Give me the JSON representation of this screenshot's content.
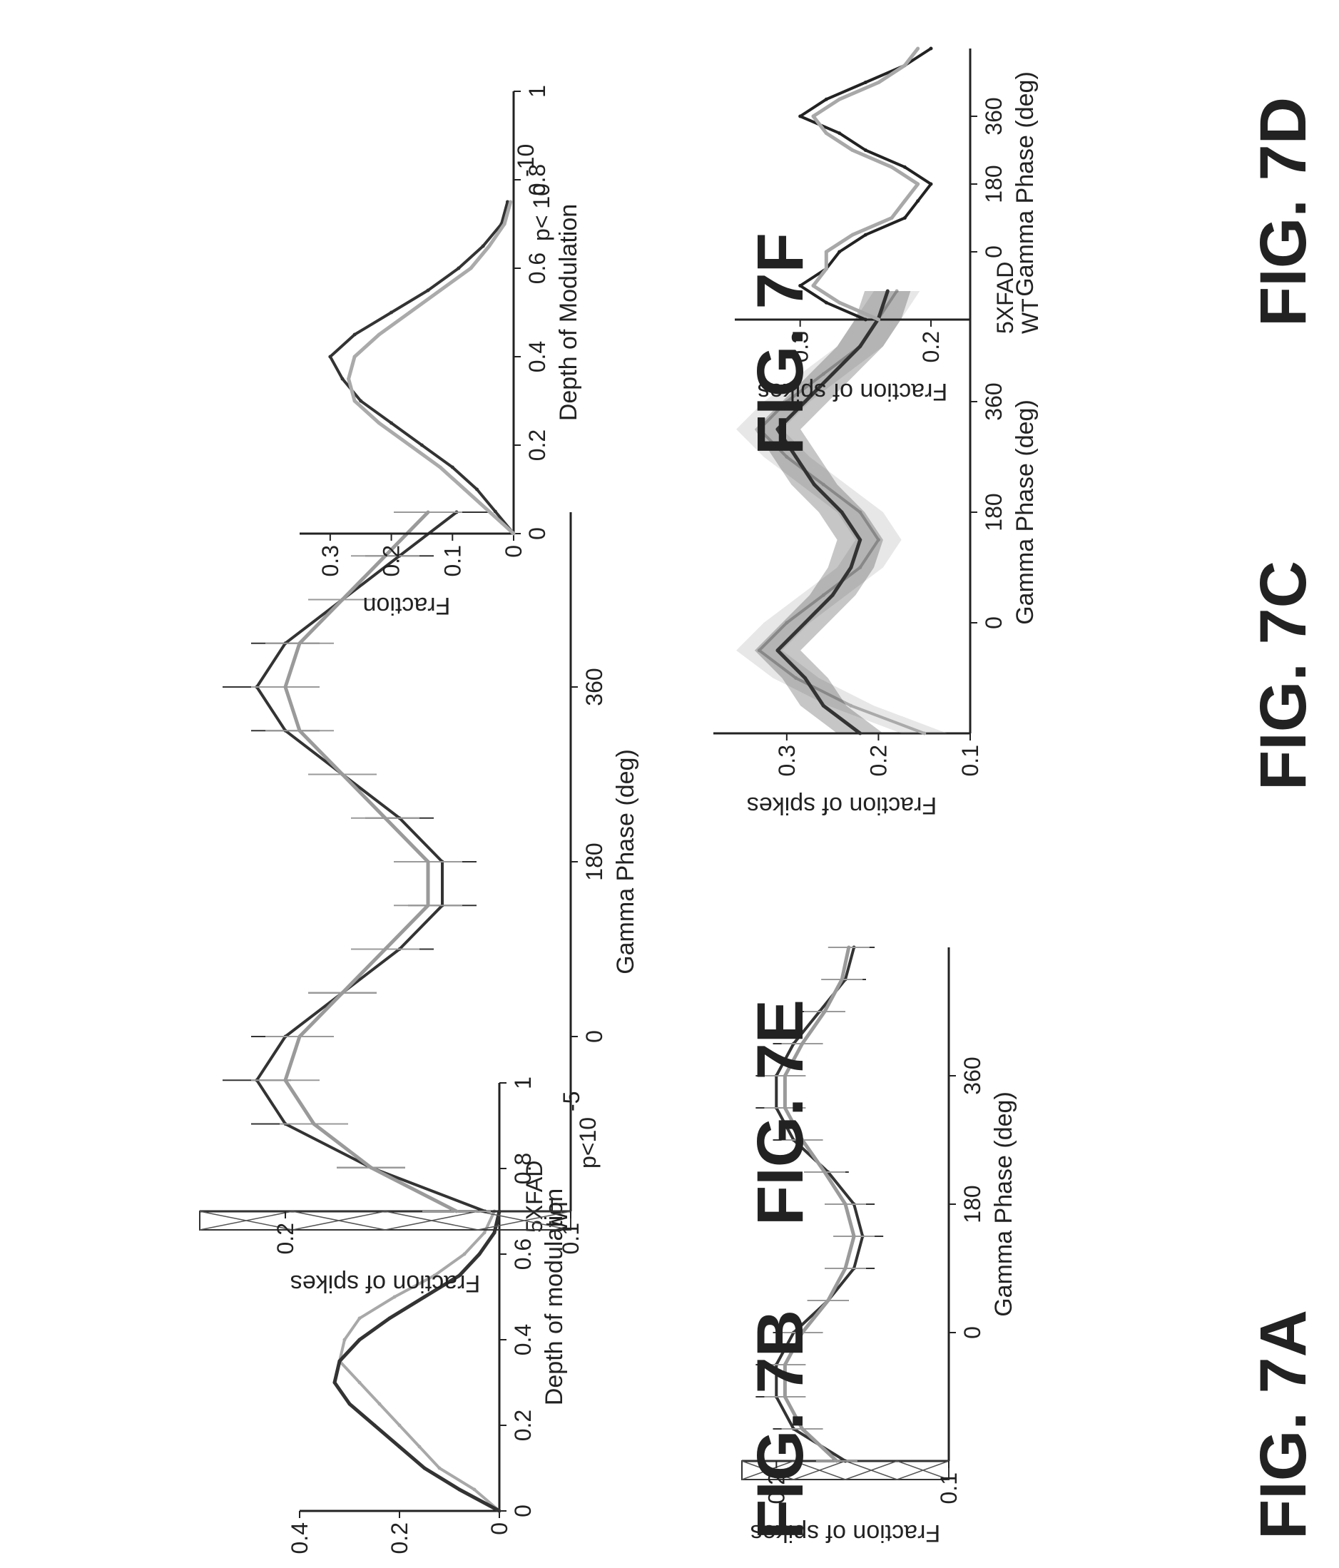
{
  "figures": {
    "a": {
      "title": "FIG. 7A"
    },
    "b": {
      "title": "FIG. 7B"
    },
    "c": {
      "title": "FIG. 7C"
    },
    "d": {
      "title": "FIG. 7D"
    },
    "e": {
      "title": "FIG. 7E"
    },
    "f": {
      "title": "FIG. 7F"
    }
  },
  "chart_data": [
    {
      "id": "a",
      "type": "line",
      "title": "FIG. 7A",
      "xlabel": "Gamma Phase (deg)",
      "ylabel": "Fraction of spikes",
      "x_ticks": [
        "0",
        "180",
        "360"
      ],
      "y_ticks": [
        "0.1",
        "0.2"
      ],
      "xlim": [
        -180,
        540
      ],
      "ylim": [
        0.1,
        0.22
      ],
      "x": [
        -180,
        -135,
        -90,
        -45,
        0,
        45,
        90,
        135,
        180,
        225,
        270,
        315,
        360,
        405,
        450,
        495,
        540
      ],
      "series": [
        {
          "values": [
            0.16,
            0.19,
            0.2,
            0.2,
            0.19,
            0.17,
            0.155,
            0.15,
            0.155,
            0.17,
            0.19,
            0.2,
            0.2,
            0.19,
            0.175,
            0.16,
            0.155
          ],
          "color": "#333333"
        },
        {
          "values": [
            0.165,
            0.185,
            0.195,
            0.195,
            0.185,
            0.17,
            0.16,
            0.155,
            0.16,
            0.172,
            0.185,
            0.195,
            0.195,
            0.185,
            0.172,
            0.162,
            0.158
          ],
          "color": "#9a9a9a"
        }
      ]
    },
    {
      "id": "b",
      "type": "line",
      "title": "FIG. 7B",
      "xlabel": "Depth of modulation",
      "ylabel": "Fraction",
      "x_ticks": [
        "0",
        "0.2",
        "0.4",
        "0.6",
        "0.8",
        "1"
      ],
      "y_ticks": [
        "0",
        "0.2",
        "0.4"
      ],
      "xlim": [
        0,
        1
      ],
      "ylim": [
        0,
        0.4
      ],
      "x": [
        0,
        0.05,
        0.1,
        0.15,
        0.2,
        0.25,
        0.3,
        0.35,
        0.4,
        0.45,
        0.5,
        0.55,
        0.6,
        0.65,
        0.7
      ],
      "series": [
        {
          "name": "5XFAD",
          "values": [
            0,
            0.05,
            0.12,
            0.16,
            0.2,
            0.24,
            0.28,
            0.32,
            0.31,
            0.28,
            0.21,
            0.13,
            0.07,
            0.03,
            0.01
          ],
          "color": "#a8a8a8"
        },
        {
          "name": "WT",
          "values": [
            0,
            0.08,
            0.15,
            0.2,
            0.25,
            0.3,
            0.33,
            0.32,
            0.28,
            0.22,
            0.15,
            0.08,
            0.04,
            0.01,
            0
          ],
          "color": "#333333"
        }
      ],
      "annotations": [
        "5XFAD",
        "WT",
        "p<10",
        "-5"
      ]
    },
    {
      "id": "c",
      "type": "line",
      "title": "FIG. 7C",
      "xlabel": "Gamma Phase (deg)",
      "ylabel": "Fraction of spikes",
      "x_ticks": [
        "0",
        "180",
        "360"
      ],
      "y_ticks": [
        "0.1",
        "0.2",
        "0.3"
      ],
      "xlim": [
        -180,
        540
      ],
      "ylim": [
        0.1,
        0.38
      ],
      "x": [
        -180,
        -135,
        -90,
        -45,
        0,
        45,
        90,
        135,
        180,
        225,
        270,
        315,
        360,
        405,
        450,
        495,
        540
      ],
      "series": [
        {
          "name": "5XFAD",
          "values": [
            0.15,
            0.23,
            0.29,
            0.33,
            0.3,
            0.26,
            0.22,
            0.2,
            0.22,
            0.26,
            0.3,
            0.33,
            0.3,
            0.26,
            0.22,
            0.2,
            0.18
          ],
          "color": "#aaaaaa"
        },
        {
          "name": "WT",
          "values": [
            0.22,
            0.26,
            0.28,
            0.31,
            0.28,
            0.25,
            0.23,
            0.22,
            0.24,
            0.27,
            0.29,
            0.31,
            0.28,
            0.25,
            0.22,
            0.2,
            0.19
          ],
          "color": "#333333"
        }
      ],
      "annotations": [
        "5XFAD",
        "WT"
      ]
    },
    {
      "id": "d",
      "type": "line",
      "title": "FIG. 7D",
      "xlabel": "Gamma Phase (deg)",
      "ylabel": "Fraction of spikes",
      "x_ticks": [
        "0",
        "180",
        "360"
      ],
      "y_ticks": [
        "0.2",
        "0.3"
      ],
      "xlim": [
        -180,
        540
      ],
      "ylim": [
        0.17,
        0.35
      ],
      "x": [
        -180,
        -135,
        -90,
        -45,
        0,
        45,
        90,
        135,
        180,
        225,
        270,
        315,
        360,
        405,
        450,
        495,
        540
      ],
      "series": [
        {
          "values": [
            0.25,
            0.28,
            0.3,
            0.28,
            0.27,
            0.25,
            0.22,
            0.21,
            0.2,
            0.22,
            0.25,
            0.27,
            0.3,
            0.28,
            0.25,
            0.22,
            0.2
          ],
          "color": "#222222"
        },
        {
          "values": [
            0.24,
            0.27,
            0.29,
            0.28,
            0.28,
            0.26,
            0.23,
            0.22,
            0.21,
            0.23,
            0.26,
            0.28,
            0.29,
            0.27,
            0.24,
            0.22,
            0.21
          ],
          "color": "#a8a8a8"
        }
      ]
    },
    {
      "id": "e",
      "type": "line",
      "title": "FIG. 7E",
      "xlabel": "Gamma Phase (deg)",
      "ylabel": "Fraction of spikes",
      "x_ticks": [
        "0",
        "180",
        "360"
      ],
      "y_ticks": [
        "0.1",
        "0.2"
      ],
      "xlim": [
        -180,
        540
      ],
      "ylim": [
        0.1,
        0.23
      ],
      "x": [
        -180,
        -135,
        -90,
        -45,
        0,
        45,
        90,
        135,
        180,
        225,
        270,
        315,
        360,
        405,
        450,
        495,
        540
      ],
      "series": [
        {
          "values": [
            0.13,
            0.17,
            0.2,
            0.21,
            0.2,
            0.18,
            0.16,
            0.145,
            0.145,
            0.16,
            0.18,
            0.2,
            0.21,
            0.2,
            0.18,
            0.16,
            0.14
          ],
          "color": "#333333"
        },
        {
          "values": [
            0.14,
            0.17,
            0.19,
            0.2,
            0.195,
            0.18,
            0.165,
            0.15,
            0.15,
            0.165,
            0.18,
            0.195,
            0.2,
            0.195,
            0.18,
            0.165,
            0.15
          ],
          "color": "#9a9a9a"
        }
      ]
    },
    {
      "id": "f",
      "type": "line",
      "title": "FIG. 7F",
      "xlabel": "Depth of Modulation",
      "ylabel": "Fraction",
      "x_ticks": [
        "0",
        "0.2",
        "0.4",
        "0.6",
        "0.8",
        "1"
      ],
      "y_ticks": [
        "0",
        "0.1",
        "0.2",
        "0.3"
      ],
      "xlim": [
        0,
        1
      ],
      "ylim": [
        0,
        0.35
      ],
      "x": [
        0,
        0.05,
        0.1,
        0.15,
        0.2,
        0.25,
        0.3,
        0.35,
        0.4,
        0.45,
        0.5,
        0.55,
        0.6,
        0.65,
        0.7,
        0.75
      ],
      "series": [
        {
          "values": [
            0,
            0.03,
            0.06,
            0.1,
            0.15,
            0.2,
            0.25,
            0.28,
            0.3,
            0.26,
            0.2,
            0.14,
            0.09,
            0.05,
            0.02,
            0.01
          ],
          "color": "#333333"
        },
        {
          "values": [
            0,
            0.04,
            0.08,
            0.12,
            0.17,
            0.22,
            0.26,
            0.27,
            0.26,
            0.22,
            0.17,
            0.12,
            0.07,
            0.04,
            0.015,
            0.005
          ],
          "color": "#aaaaaa"
        }
      ],
      "annotations": [
        "p< 10",
        "-10"
      ]
    }
  ]
}
